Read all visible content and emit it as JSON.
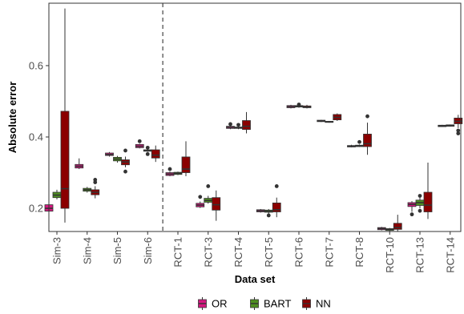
{
  "chart_data": {
    "type": "boxplot",
    "xlabel": "Data set",
    "ylabel": "Absolute error",
    "ylim": [
      0.135,
      0.775
    ],
    "yticks": [
      0.2,
      0.4,
      0.6
    ],
    "ytick_labels": [
      "0.2",
      "0.4",
      "0.6"
    ],
    "grid": false,
    "legend_position": "bottom",
    "divider_after": "Sim-6",
    "categories": [
      "Sim-3",
      "Sim-4",
      "Sim-5",
      "Sim-6",
      "RCT-1",
      "RCT-3",
      "RCT-4",
      "RCT-5",
      "RCT-6",
      "RCT-7",
      "RCT-8",
      "RCT-10",
      "RCT-13",
      "RCT-14"
    ],
    "series": [
      {
        "name": "OR",
        "color": "#d4177f",
        "boxes": [
          {
            "min": 0.175,
            "q1": 0.192,
            "median": 0.2,
            "q3": 0.21,
            "max": 0.215,
            "outliers": []
          },
          {
            "min": 0.31,
            "q1": 0.313,
            "median": 0.318,
            "q3": 0.323,
            "max": 0.34,
            "outliers": []
          },
          {
            "min": 0.345,
            "q1": 0.348,
            "median": 0.351,
            "q3": 0.355,
            "max": 0.358,
            "outliers": []
          },
          {
            "min": 0.368,
            "q1": 0.37,
            "median": 0.374,
            "q3": 0.379,
            "max": 0.381,
            "outliers": [
              0.388
            ]
          },
          {
            "min": 0.29,
            "q1": 0.292,
            "median": 0.296,
            "q3": 0.3,
            "max": 0.303,
            "outliers": [
              0.31
            ]
          },
          {
            "min": 0.201,
            "q1": 0.204,
            "median": 0.209,
            "q3": 0.214,
            "max": 0.219,
            "outliers": [
              0.232
            ]
          },
          {
            "min": 0.422,
            "q1": 0.424,
            "median": 0.427,
            "q3": 0.43,
            "max": 0.432,
            "outliers": [
              0.436
            ]
          },
          {
            "min": 0.188,
            "q1": 0.19,
            "median": 0.193,
            "q3": 0.196,
            "max": 0.198,
            "outliers": []
          },
          {
            "min": 0.48,
            "q1": 0.482,
            "median": 0.485,
            "q3": 0.488,
            "max": 0.49,
            "outliers": []
          },
          {
            "min": 0.442,
            "q1": 0.443,
            "median": 0.445,
            "q3": 0.447,
            "max": 0.448,
            "outliers": []
          },
          {
            "min": 0.371,
            "q1": 0.372,
            "median": 0.374,
            "q3": 0.376,
            "max": 0.378,
            "outliers": []
          },
          {
            "min": 0.138,
            "q1": 0.14,
            "median": 0.143,
            "q3": 0.146,
            "max": 0.148,
            "outliers": []
          },
          {
            "min": 0.19,
            "q1": 0.205,
            "median": 0.211,
            "q3": 0.216,
            "max": 0.22,
            "outliers": [
              0.183
            ]
          },
          {
            "min": 0.428,
            "q1": 0.429,
            "median": 0.431,
            "q3": 0.433,
            "max": 0.434,
            "outliers": []
          }
        ]
      },
      {
        "name": "BART",
        "color": "#4f8f21",
        "boxes": [
          {
            "min": 0.225,
            "q1": 0.23,
            "median": 0.237,
            "q3": 0.245,
            "max": 0.252,
            "outliers": []
          },
          {
            "min": 0.244,
            "q1": 0.248,
            "median": 0.252,
            "q3": 0.256,
            "max": 0.26,
            "outliers": []
          },
          {
            "min": 0.328,
            "q1": 0.333,
            "median": 0.338,
            "q3": 0.343,
            "max": 0.347,
            "outliers": []
          },
          {
            "min": 0.358,
            "q1": 0.36,
            "median": 0.362,
            "q3": 0.364,
            "max": 0.366,
            "outliers": [
              0.352,
              0.37
            ]
          },
          {
            "min": 0.293,
            "q1": 0.295,
            "median": 0.298,
            "q3": 0.301,
            "max": 0.303,
            "outliers": []
          },
          {
            "min": 0.213,
            "q1": 0.217,
            "median": 0.222,
            "q3": 0.228,
            "max": 0.235,
            "outliers": [
              0.262
            ]
          },
          {
            "min": 0.422,
            "q1": 0.424,
            "median": 0.426,
            "q3": 0.428,
            "max": 0.43,
            "outliers": [
              0.434
            ]
          },
          {
            "min": 0.185,
            "q1": 0.189,
            "median": 0.192,
            "q3": 0.195,
            "max": 0.198,
            "outliers": [
              0.18
            ]
          },
          {
            "min": 0.482,
            "q1": 0.484,
            "median": 0.486,
            "q3": 0.488,
            "max": 0.489,
            "outliers": [
              0.491
            ]
          },
          {
            "min": 0.44,
            "q1": 0.441,
            "median": 0.442,
            "q3": 0.444,
            "max": 0.445,
            "outliers": []
          },
          {
            "min": 0.372,
            "q1": 0.373,
            "median": 0.375,
            "q3": 0.377,
            "max": 0.379,
            "outliers": [
              0.386
            ]
          },
          {
            "min": 0.136,
            "q1": 0.138,
            "median": 0.141,
            "q3": 0.143,
            "max": 0.145,
            "outliers": []
          },
          {
            "min": 0.2,
            "q1": 0.208,
            "median": 0.216,
            "q3": 0.223,
            "max": 0.232,
            "outliers": [
              0.193,
              0.235
            ]
          },
          {
            "min": 0.429,
            "q1": 0.43,
            "median": 0.432,
            "q3": 0.434,
            "max": 0.435,
            "outliers": []
          }
        ]
      },
      {
        "name": "NN",
        "color": "#8b0000",
        "boxes": [
          {
            "min": 0.16,
            "q1": 0.2,
            "median": 0.255,
            "q3": 0.472,
            "max": 0.76,
            "outliers": []
          },
          {
            "min": 0.228,
            "q1": 0.238,
            "median": 0.245,
            "q3": 0.252,
            "max": 0.262,
            "outliers": [
              0.273,
              0.28
            ]
          },
          {
            "min": 0.315,
            "q1": 0.322,
            "median": 0.33,
            "q3": 0.336,
            "max": 0.345,
            "outliers": [
              0.303,
              0.362
            ]
          },
          {
            "min": 0.33,
            "q1": 0.341,
            "median": 0.349,
            "q3": 0.364,
            "max": 0.376,
            "outliers": []
          },
          {
            "min": 0.29,
            "q1": 0.3,
            "median": 0.31,
            "q3": 0.344,
            "max": 0.388,
            "outliers": []
          },
          {
            "min": 0.165,
            "q1": 0.195,
            "median": 0.21,
            "q3": 0.23,
            "max": 0.25,
            "outliers": []
          },
          {
            "min": 0.41,
            "q1": 0.421,
            "median": 0.43,
            "q3": 0.446,
            "max": 0.47,
            "outliers": []
          },
          {
            "min": 0.175,
            "q1": 0.19,
            "median": 0.196,
            "q3": 0.215,
            "max": 0.23,
            "outliers": [
              0.262
            ]
          },
          {
            "min": 0.48,
            "q1": 0.482,
            "median": 0.484,
            "q3": 0.487,
            "max": 0.49,
            "outliers": []
          },
          {
            "min": 0.445,
            "q1": 0.448,
            "median": 0.455,
            "q3": 0.463,
            "max": 0.466,
            "outliers": []
          },
          {
            "min": 0.35,
            "q1": 0.373,
            "median": 0.381,
            "q3": 0.408,
            "max": 0.44,
            "outliers": [
              0.458
            ]
          },
          {
            "min": 0.135,
            "q1": 0.141,
            "median": 0.146,
            "q3": 0.158,
            "max": 0.182,
            "outliers": []
          },
          {
            "min": 0.17,
            "q1": 0.19,
            "median": 0.209,
            "q3": 0.245,
            "max": 0.328,
            "outliers": []
          },
          {
            "min": 0.425,
            "q1": 0.437,
            "median": 0.444,
            "q3": 0.453,
            "max": 0.462,
            "outliers": [
              0.418,
              0.41
            ]
          }
        ]
      }
    ]
  }
}
